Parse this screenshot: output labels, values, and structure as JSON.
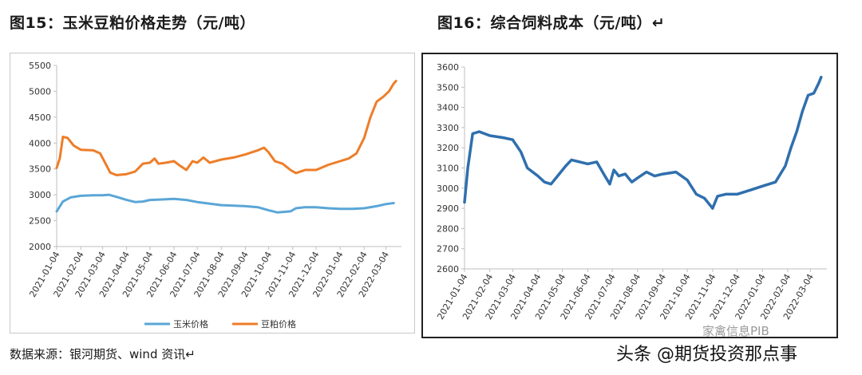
{
  "charts_header": {
    "title_left": "图15：玉米豆粕价格走势（元/吨）",
    "title_right": "图16：综合饲料成本（元/吨）↵"
  },
  "source_text": "数据来源：银河期货、wind 资讯↵",
  "watermark": "头条 @期货投资那点事",
  "watermark2": "家禽信息PIB",
  "colors": {
    "corn": "#5aa6d6",
    "meal": "#ee7d28",
    "feed": "#2f6fae",
    "axis": "#bfbfbf"
  },
  "chart_data": [
    {
      "type": "line",
      "title": "图15：玉米豆粕价格走势（元/吨）",
      "x_ticks": [
        "2021-01-04",
        "2021-02-04",
        "2021-03-04",
        "2021-04-04",
        "2021-05-04",
        "2021-06-04",
        "2021-07-04",
        "2021-08-04",
        "2021-09-04",
        "2021-10-04",
        "2021-11-04",
        "2021-12-04",
        "2022-01-04",
        "2022-02-04",
        "2022-03-04"
      ],
      "ylim": [
        2000,
        5500
      ],
      "y_ticks": [
        2000,
        2500,
        3000,
        3500,
        4000,
        4500,
        5000,
        5500
      ],
      "legend_position": "bottom",
      "grid": false,
      "series": [
        {
          "name": "玉米价格",
          "points": [
            [
              "2021-01-04",
              2680
            ],
            [
              "2021-01-12",
              2870
            ],
            [
              "2021-01-22",
              2950
            ],
            [
              "2021-02-04",
              2980
            ],
            [
              "2021-02-20",
              2990
            ],
            [
              "2021-03-04",
              2990
            ],
            [
              "2021-03-12",
              3000
            ],
            [
              "2021-03-22",
              2960
            ],
            [
              "2021-04-04",
              2900
            ],
            [
              "2021-04-15",
              2860
            ],
            [
              "2021-04-25",
              2870
            ],
            [
              "2021-05-04",
              2900
            ],
            [
              "2021-05-20",
              2910
            ],
            [
              "2021-06-04",
              2920
            ],
            [
              "2021-06-20",
              2900
            ],
            [
              "2021-07-04",
              2860
            ],
            [
              "2021-07-20",
              2830
            ],
            [
              "2021-08-04",
              2800
            ],
            [
              "2021-08-20",
              2790
            ],
            [
              "2021-09-04",
              2780
            ],
            [
              "2021-09-20",
              2760
            ],
            [
              "2021-10-04",
              2700
            ],
            [
              "2021-10-15",
              2660
            ],
            [
              "2021-11-01",
              2680
            ],
            [
              "2021-11-08",
              2740
            ],
            [
              "2021-11-20",
              2760
            ],
            [
              "2021-12-04",
              2760
            ],
            [
              "2021-12-20",
              2740
            ],
            [
              "2022-01-04",
              2730
            ],
            [
              "2022-01-20",
              2730
            ],
            [
              "2022-02-04",
              2740
            ],
            [
              "2022-02-20",
              2780
            ],
            [
              "2022-03-04",
              2820
            ],
            [
              "2022-03-14",
              2840
            ]
          ]
        },
        {
          "name": "豆粕价格",
          "points": [
            [
              "2021-01-04",
              3520
            ],
            [
              "2021-01-08",
              3700
            ],
            [
              "2021-01-12",
              4120
            ],
            [
              "2021-01-18",
              4100
            ],
            [
              "2021-01-26",
              3950
            ],
            [
              "2021-02-04",
              3870
            ],
            [
              "2021-02-20",
              3860
            ],
            [
              "2021-03-01",
              3800
            ],
            [
              "2021-03-08",
              3600
            ],
            [
              "2021-03-14",
              3430
            ],
            [
              "2021-03-22",
              3380
            ],
            [
              "2021-04-04",
              3400
            ],
            [
              "2021-04-15",
              3450
            ],
            [
              "2021-04-25",
              3600
            ],
            [
              "2021-05-04",
              3620
            ],
            [
              "2021-05-10",
              3700
            ],
            [
              "2021-05-15",
              3600
            ],
            [
              "2021-05-25",
              3620
            ],
            [
              "2021-06-04",
              3650
            ],
            [
              "2021-06-12",
              3560
            ],
            [
              "2021-06-20",
              3480
            ],
            [
              "2021-06-28",
              3650
            ],
            [
              "2021-07-04",
              3620
            ],
            [
              "2021-07-12",
              3720
            ],
            [
              "2021-07-20",
              3620
            ],
            [
              "2021-08-04",
              3680
            ],
            [
              "2021-08-20",
              3720
            ],
            [
              "2021-09-04",
              3780
            ],
            [
              "2021-09-20",
              3860
            ],
            [
              "2021-09-28",
              3910
            ],
            [
              "2021-10-04",
              3820
            ],
            [
              "2021-10-12",
              3650
            ],
            [
              "2021-10-22",
              3600
            ],
            [
              "2021-11-01",
              3480
            ],
            [
              "2021-11-08",
              3420
            ],
            [
              "2021-11-20",
              3480
            ],
            [
              "2021-12-04",
              3480
            ],
            [
              "2021-12-20",
              3580
            ],
            [
              "2022-01-04",
              3650
            ],
            [
              "2022-01-15",
              3700
            ],
            [
              "2022-01-25",
              3800
            ],
            [
              "2022-02-04",
              4100
            ],
            [
              "2022-02-12",
              4500
            ],
            [
              "2022-02-20",
              4800
            ],
            [
              "2022-03-01",
              4900
            ],
            [
              "2022-03-08",
              5000
            ],
            [
              "2022-03-14",
              5150
            ],
            [
              "2022-03-17",
              5200
            ]
          ]
        }
      ]
    },
    {
      "type": "line",
      "title": "图16：综合饲料成本（元/吨）",
      "x_ticks": [
        "2021-01-04",
        "2021-02-04",
        "2021-03-04",
        "2021-04-04",
        "2021-05-04",
        "2021-06-04",
        "2021-07-04",
        "2021-08-04",
        "2021-09-04",
        "2021-10-04",
        "2021-11-04",
        "2021-12-04",
        "2022-01-04",
        "2022-02-04",
        "2022-03-04"
      ],
      "ylim": [
        2600,
        3600
      ],
      "y_ticks": [
        2600,
        2700,
        2800,
        2900,
        3000,
        3100,
        3200,
        3300,
        3400,
        3500,
        3600
      ],
      "legend_position": "none",
      "grid": false,
      "series": [
        {
          "name": "",
          "points": [
            [
              "2021-01-04",
              2930
            ],
            [
              "2021-01-08",
              3100
            ],
            [
              "2021-01-14",
              3270
            ],
            [
              "2021-01-22",
              3280
            ],
            [
              "2021-02-04",
              3260
            ],
            [
              "2021-02-20",
              3250
            ],
            [
              "2021-03-04",
              3240
            ],
            [
              "2021-03-14",
              3180
            ],
            [
              "2021-03-22",
              3100
            ],
            [
              "2021-04-04",
              3060
            ],
            [
              "2021-04-12",
              3030
            ],
            [
              "2021-04-20",
              3020
            ],
            [
              "2021-04-30",
              3070
            ],
            [
              "2021-05-08",
              3110
            ],
            [
              "2021-05-15",
              3140
            ],
            [
              "2021-05-25",
              3130
            ],
            [
              "2021-06-04",
              3120
            ],
            [
              "2021-06-15",
              3130
            ],
            [
              "2021-06-25",
              3060
            ],
            [
              "2021-07-01",
              3020
            ],
            [
              "2021-07-06",
              3090
            ],
            [
              "2021-07-12",
              3060
            ],
            [
              "2021-07-20",
              3070
            ],
            [
              "2021-07-28",
              3030
            ],
            [
              "2021-08-04",
              3050
            ],
            [
              "2021-08-15",
              3080
            ],
            [
              "2021-08-25",
              3060
            ],
            [
              "2021-09-04",
              3070
            ],
            [
              "2021-09-20",
              3080
            ],
            [
              "2021-10-04",
              3040
            ],
            [
              "2021-10-15",
              2970
            ],
            [
              "2021-10-25",
              2950
            ],
            [
              "2021-11-04",
              2900
            ],
            [
              "2021-11-10",
              2960
            ],
            [
              "2021-11-20",
              2970
            ],
            [
              "2021-12-04",
              2970
            ],
            [
              "2021-12-20",
              2990
            ],
            [
              "2022-01-04",
              3010
            ],
            [
              "2022-01-20",
              3030
            ],
            [
              "2022-02-01",
              3110
            ],
            [
              "2022-02-08",
              3200
            ],
            [
              "2022-02-15",
              3280
            ],
            [
              "2022-02-22",
              3380
            ],
            [
              "2022-03-01",
              3460
            ],
            [
              "2022-03-08",
              3470
            ],
            [
              "2022-03-14",
              3520
            ],
            [
              "2022-03-17",
              3550
            ]
          ]
        }
      ]
    }
  ]
}
